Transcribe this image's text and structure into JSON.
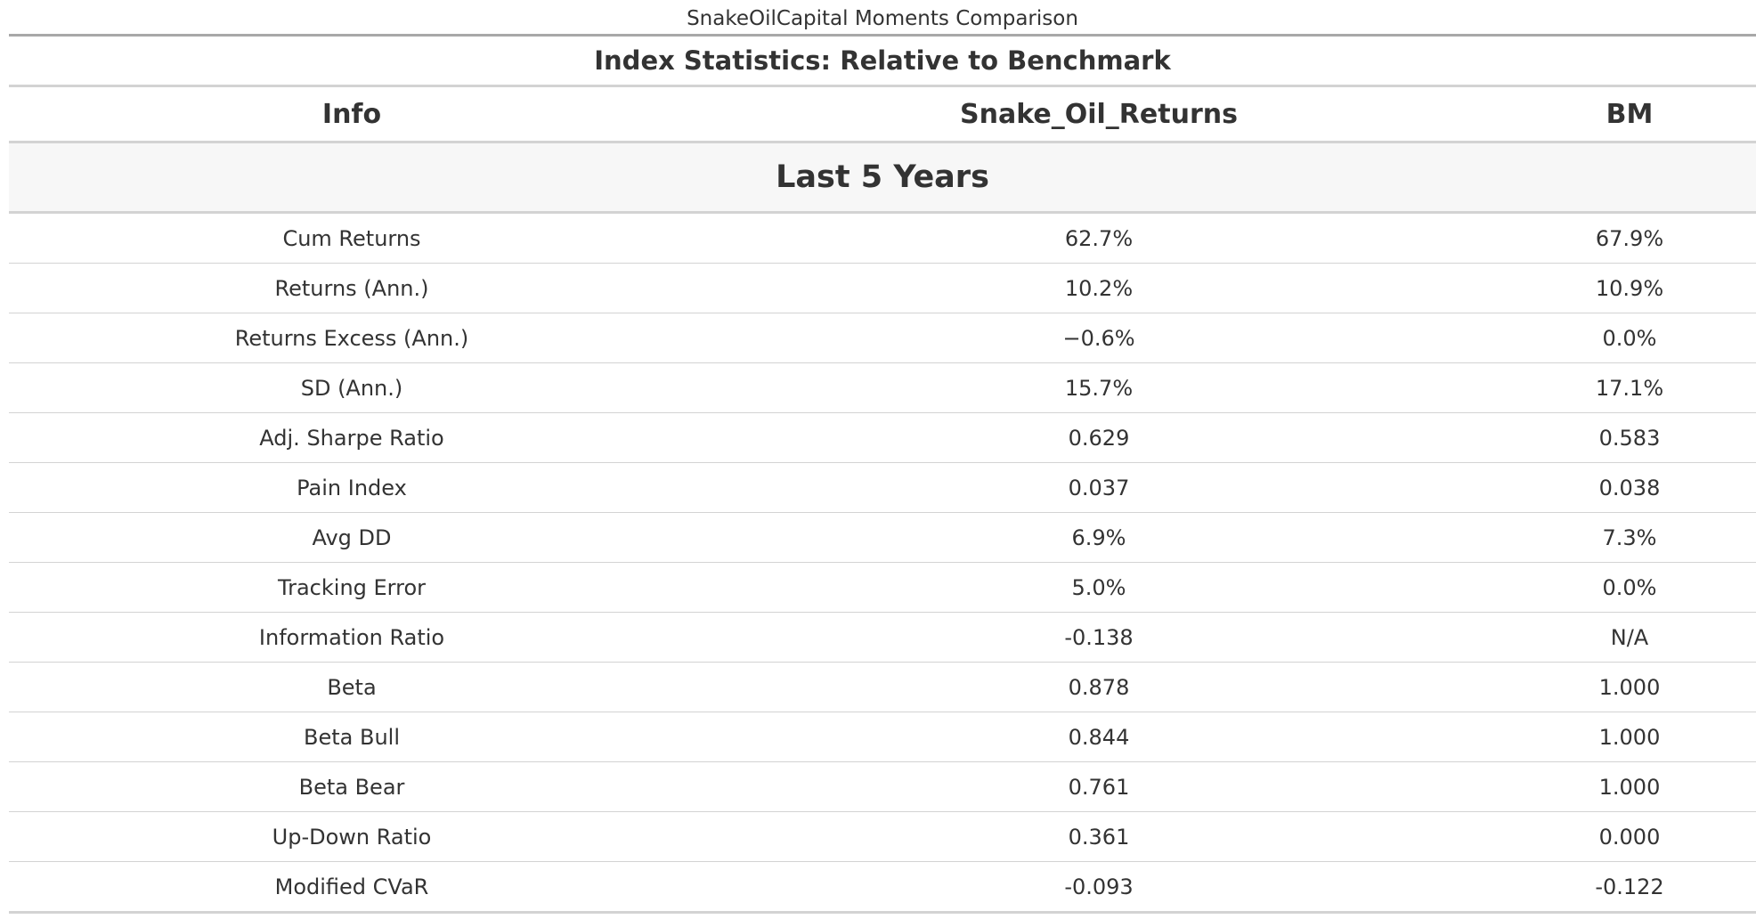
{
  "caption": "SnakeOilCapital Moments Comparison",
  "table": {
    "title": "Index Statistics: Relative to Benchmark",
    "columns": [
      "Info",
      "Snake_Oil_Returns",
      "BM"
    ],
    "group_label": "Last 5 Years",
    "rows": [
      {
        "info": "Cum Returns",
        "snake": "62.7%",
        "bm": "67.9%"
      },
      {
        "info": "Returns (Ann.)",
        "snake": "10.2%",
        "bm": "10.9%"
      },
      {
        "info": "Returns Excess (Ann.)",
        "snake": "−0.6%",
        "bm": "0.0%"
      },
      {
        "info": "SD (Ann.)",
        "snake": "15.7%",
        "bm": "17.1%"
      },
      {
        "info": "Adj. Sharpe Ratio",
        "snake": "0.629",
        "bm": "0.583"
      },
      {
        "info": "Pain Index",
        "snake": "0.037",
        "bm": "0.038"
      },
      {
        "info": "Avg DD",
        "snake": "6.9%",
        "bm": "7.3%"
      },
      {
        "info": "Tracking Error",
        "snake": "5.0%",
        "bm": "0.0%"
      },
      {
        "info": "Information Ratio",
        "snake": "-0.138",
        "bm": "N/A"
      },
      {
        "info": "Beta",
        "snake": "0.878",
        "bm": "1.000"
      },
      {
        "info": "Beta Bull",
        "snake": "0.844",
        "bm": "1.000"
      },
      {
        "info": "Beta Bear",
        "snake": "0.761",
        "bm": "1.000"
      },
      {
        "info": "Up-Down Ratio",
        "snake": "0.361",
        "bm": "0.000"
      },
      {
        "info": "Modified CVaR",
        "snake": "-0.093",
        "bm": "-0.122"
      }
    ]
  }
}
